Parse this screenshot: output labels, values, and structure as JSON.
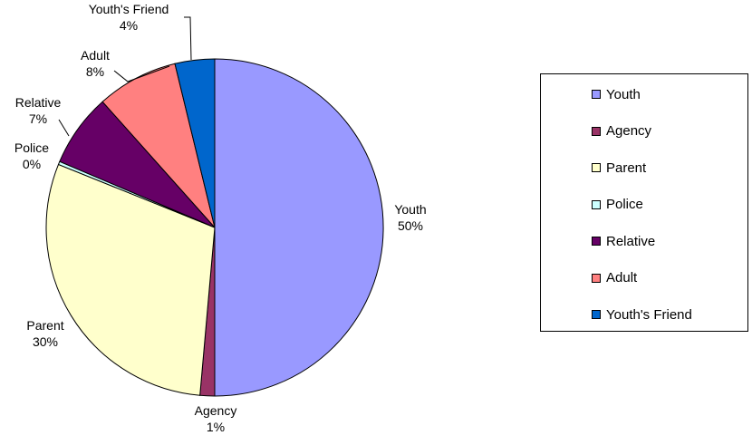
{
  "chart_data": {
    "type": "pie",
    "start_angle_deg": 0,
    "direction": "clockwise",
    "legend_position": "right",
    "slices": [
      {
        "label": "Youth",
        "value": 50.0,
        "percent_label": "50%",
        "color": "#9999FF"
      },
      {
        "label": "Agency",
        "value": 1.4,
        "percent_label": "1%",
        "color": "#993366"
      },
      {
        "label": "Parent",
        "value": 29.7,
        "percent_label": "30%",
        "color": "#FFFFCC"
      },
      {
        "label": "Police",
        "value": 0.3,
        "percent_label": "0%",
        "color": "#CCFFFF"
      },
      {
        "label": "Relative",
        "value": 7.0,
        "percent_label": "7%",
        "color": "#660066"
      },
      {
        "label": "Adult",
        "value": 7.8,
        "percent_label": "8%",
        "color": "#FF8080"
      },
      {
        "label": "Youth's Friend",
        "value": 3.8,
        "percent_label": "4%",
        "color": "#0066CC"
      }
    ]
  }
}
